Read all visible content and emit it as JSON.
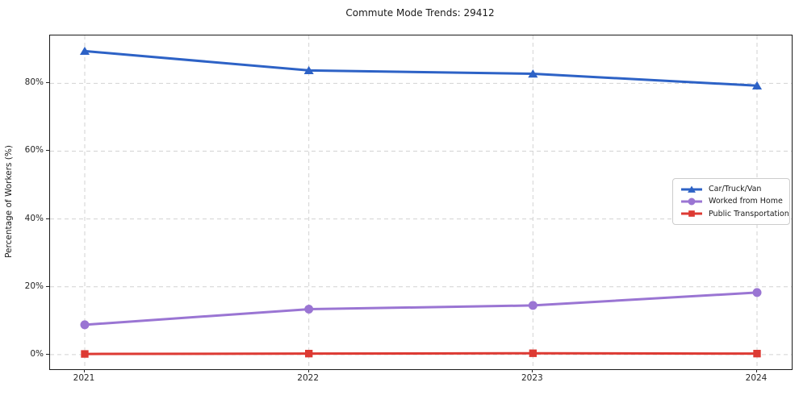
{
  "chart_data": {
    "type": "line",
    "title": "Commute Mode Trends: 29412",
    "xlabel": "",
    "ylabel": "Percentage of Workers (%)",
    "x_categories": [
      "2021",
      "2022",
      "2023",
      "2024"
    ],
    "y_ticks": [
      0,
      20,
      40,
      60,
      80
    ],
    "y_tick_labels": [
      "0%",
      "20%",
      "40%",
      "60%",
      "80%"
    ],
    "ylim": [
      -4.3,
      94.1
    ],
    "grid": "dashed-both-axes",
    "legend_position": "center-right",
    "series": [
      {
        "name": "Car/Truck/Van",
        "color": "#2d62c6",
        "marker": "triangle",
        "values": [
          89.5,
          83.8,
          82.8,
          79.3
        ]
      },
      {
        "name": "Worked from Home",
        "color": "#9a75d3",
        "marker": "circle",
        "values": [
          8.8,
          13.4,
          14.5,
          18.3
        ]
      },
      {
        "name": "Public Transportation",
        "color": "#dd3a33",
        "marker": "square",
        "values": [
          0.2,
          0.3,
          0.4,
          0.3
        ]
      }
    ],
    "grid_color": "#d2d2d2"
  }
}
